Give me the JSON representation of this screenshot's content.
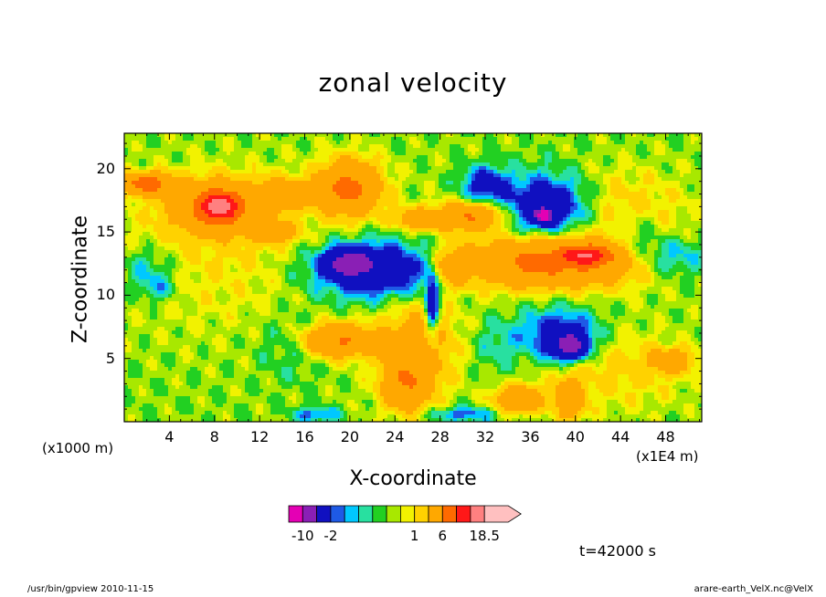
{
  "chart_data": {
    "type": "heatmap",
    "title": "zonal velocity",
    "xlabel": "X-coordinate",
    "ylabel": "Z-coordinate",
    "x_unit_label": "(x1000 m)",
    "x_unit_label2": "(x1E4 m)",
    "xlim": [
      0,
      51.2
    ],
    "ylim": [
      0,
      22.8
    ],
    "xticks": [
      "4",
      "8",
      "12",
      "16",
      "20",
      "24",
      "28",
      "32",
      "36",
      "40",
      "44",
      "48"
    ],
    "xtick_values": [
      4,
      8,
      12,
      16,
      20,
      24,
      28,
      32,
      36,
      40,
      44,
      48
    ],
    "yticks": [
      "5",
      "10",
      "15",
      "20"
    ],
    "ytick_values": [
      5,
      10,
      15,
      20
    ],
    "colorbar": {
      "levels": [
        -14,
        -10,
        -6,
        -2,
        -1.5,
        -1,
        -0.5,
        0,
        0.5,
        1,
        2,
        6,
        10,
        14,
        18.5
      ],
      "colors": [
        "#e400b4",
        "#8a1fb5",
        "#1010c0",
        "#1e5ae6",
        "#00c8ff",
        "#28e0a0",
        "#22d022",
        "#a8e800",
        "#f2f200",
        "#ffd200",
        "#ffa800",
        "#ff6a00",
        "#ff1818",
        "#ff8080",
        "#ffc0c0"
      ],
      "tick_labels": [
        "-10",
        "-2",
        "1",
        "6",
        "18.5"
      ],
      "tick_values": [
        -10,
        -2,
        1,
        6,
        18.5
      ]
    },
    "regions": [
      {
        "x": 26,
        "z": 11,
        "rx": 26,
        "rz": 12,
        "v": 0.3
      },
      {
        "x": 8,
        "z": 14,
        "rx": 10,
        "rz": 6,
        "v": 0.9
      },
      {
        "x": 2,
        "z": 18.8,
        "rx": 2.2,
        "rz": 0.8,
        "v": 8
      },
      {
        "x": 8,
        "z": 17,
        "rx": 3.5,
        "rz": 1.8,
        "v": 7
      },
      {
        "x": 8.5,
        "z": 17,
        "rx": 1.5,
        "rz": 1,
        "v": 10
      },
      {
        "x": 14,
        "z": 18,
        "rx": 2.5,
        "rz": 1.2,
        "v": 4
      },
      {
        "x": 13,
        "z": 15,
        "rx": 2,
        "rz": 0.8,
        "v": 4
      },
      {
        "x": 20,
        "z": 18.5,
        "rx": 2.5,
        "rz": 2,
        "v": 7
      },
      {
        "x": 26,
        "z": 16,
        "rx": 2,
        "rz": 0.8,
        "v": 4
      },
      {
        "x": 30.5,
        "z": 16.2,
        "rx": 2.8,
        "rz": 1,
        "v": 6
      },
      {
        "x": 37.5,
        "z": 12.6,
        "rx": 7.5,
        "rz": 1.8,
        "v": 7
      },
      {
        "x": 41,
        "z": 13.2,
        "rx": 2,
        "rz": 0.7,
        "v": 10
      },
      {
        "x": 29,
        "z": 12,
        "rx": 1.5,
        "rz": 1.5,
        "v": 3
      },
      {
        "x": 19,
        "z": 6.4,
        "rx": 3,
        "rz": 1.2,
        "v": 6
      },
      {
        "x": 26,
        "z": 6,
        "rx": 3,
        "rz": 3.5,
        "v": 3
      },
      {
        "x": 25,
        "z": 3,
        "rx": 2,
        "rz": 2,
        "v": 5
      },
      {
        "x": 35,
        "z": 1.8,
        "rx": 2,
        "rz": 1,
        "v": 5
      },
      {
        "x": 48.5,
        "z": 4.8,
        "rx": 1.8,
        "rz": 0.9,
        "v": 4
      },
      {
        "x": 2,
        "z": 12,
        "rx": 2.5,
        "rz": 1.8,
        "v": -1.5
      },
      {
        "x": 3,
        "z": 10.5,
        "rx": 1.5,
        "rz": 1,
        "v": -1.2
      },
      {
        "x": 48.5,
        "z": 13,
        "rx": 3,
        "rz": 1.5,
        "v": -2
      },
      {
        "x": 45.5,
        "z": 14.5,
        "rx": 2,
        "rz": 2,
        "v": -1.2
      },
      {
        "x": 22.5,
        "z": 12,
        "rx": 6,
        "rz": 2.3,
        "v": -4
      },
      {
        "x": 20,
        "z": 12.5,
        "rx": 2,
        "rz": 1,
        "v": -7
      },
      {
        "x": 32,
        "z": 18.8,
        "rx": 2,
        "rz": 1.4,
        "v": -3
      },
      {
        "x": 37.5,
        "z": 17,
        "rx": 3.8,
        "rz": 2.5,
        "v": -4
      },
      {
        "x": 37.2,
        "z": 16.3,
        "rx": 0.7,
        "rz": 0.5,
        "v": -12
      },
      {
        "x": 38.5,
        "z": 7,
        "rx": 3.5,
        "rz": 2,
        "v": -3
      },
      {
        "x": 39.5,
        "z": 6,
        "rx": 1.5,
        "rz": 1,
        "v": -7
      },
      {
        "x": 27.3,
        "z": 9,
        "rx": 0.6,
        "rz": 2.5,
        "v": -4
      },
      {
        "x": 15,
        "z": 6,
        "rx": 3,
        "rz": 2.5,
        "v": -1
      },
      {
        "x": 33,
        "z": 6,
        "rx": 2,
        "rz": 2,
        "v": -1
      },
      {
        "x": 30,
        "z": 0.6,
        "rx": 3,
        "rz": 0.6,
        "v": -2
      },
      {
        "x": 17,
        "z": 0.6,
        "rx": 2,
        "rz": 0.6,
        "v": -2
      },
      {
        "x": 39.5,
        "z": 1.8,
        "rx": 1.2,
        "rz": 1.5,
        "v": 5
      },
      {
        "x": 44,
        "z": 17,
        "rx": 6,
        "rz": 3,
        "v": 1.3
      },
      {
        "x": 44,
        "z": 4,
        "rx": 6,
        "rz": 3,
        "v": 1.2
      }
    ]
  },
  "time_label": "t=42000 s",
  "footer": {
    "left": "/usr/bin/gpview   2010-11-15",
    "right": "arare-earth_VelX.nc@VelX"
  }
}
